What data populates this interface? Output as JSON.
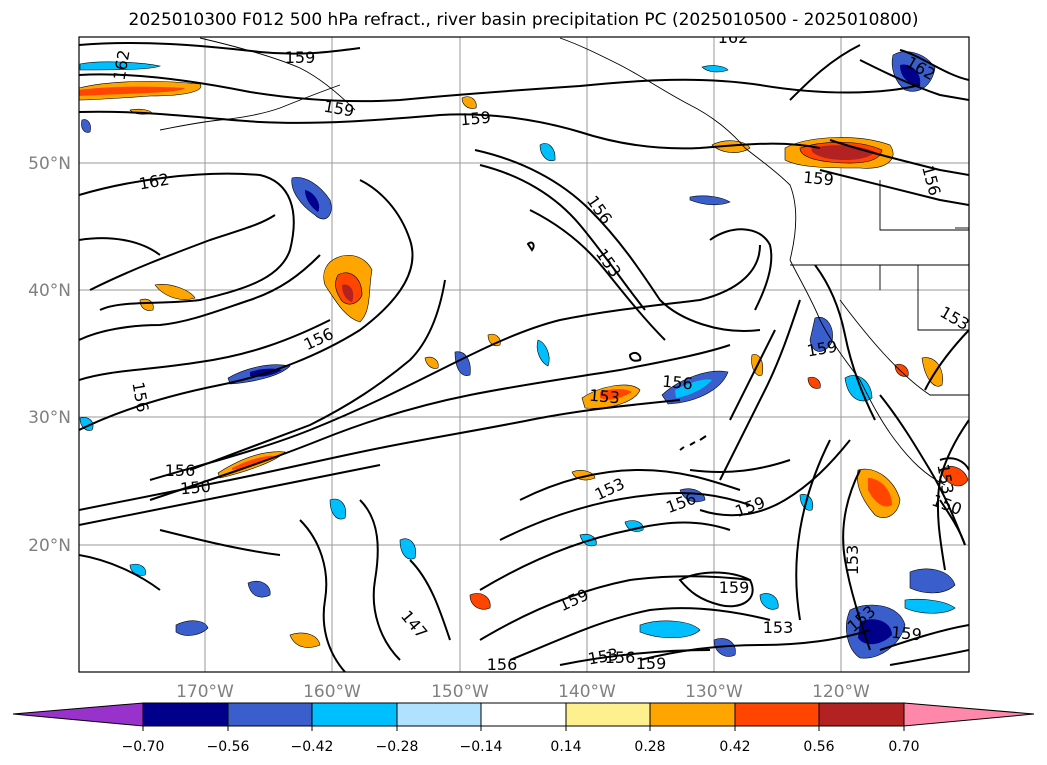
{
  "title": "2025010300 F012 500 hPa refract., river basin precipitation PC (2025010500 - 2025010800)",
  "map": {
    "lat_labels": [
      "50°N",
      "40°N",
      "30°N",
      "20°N"
    ],
    "lon_labels": [
      "170°W",
      "160°W",
      "150°W",
      "140°W",
      "130°W",
      "120°W"
    ],
    "contour_labels": [
      {
        "text": "162",
        "rot": -80
      },
      {
        "text": "159",
        "rot": 0
      },
      {
        "text": "162",
        "rot": 0
      },
      {
        "text": "159",
        "rot": 10
      },
      {
        "text": "159",
        "rot": -5
      },
      {
        "text": "162",
        "rot": -10
      },
      {
        "text": "156",
        "rot": 55
      },
      {
        "text": "153",
        "rot": 55
      },
      {
        "text": "162",
        "rot": 30
      },
      {
        "text": "159",
        "rot": 5
      },
      {
        "text": "156",
        "rot": 75
      },
      {
        "text": "156",
        "rot": -25
      },
      {
        "text": "153",
        "rot": 30
      },
      {
        "text": "159",
        "rot": -10
      },
      {
        "text": "156",
        "rot": 80
      },
      {
        "text": "153",
        "rot": 5
      },
      {
        "text": "156",
        "rot": 5
      },
      {
        "text": "156",
        "rot": 0
      },
      {
        "text": "150",
        "rot": -5
      },
      {
        "text": "153",
        "rot": -25
      },
      {
        "text": "156",
        "rot": -20
      },
      {
        "text": "159",
        "rot": -20
      },
      {
        "text": "153",
        "rot": 80
      },
      {
        "text": "150",
        "rot": 20
      },
      {
        "text": "153",
        "rot": -90
      },
      {
        "text": "159",
        "rot": 0
      },
      {
        "text": "159",
        "rot": -25
      },
      {
        "text": "153",
        "rot": 0
      },
      {
        "text": "153",
        "rot": -40
      },
      {
        "text": "159",
        "rot": 5
      },
      {
        "text": "147",
        "rot": 50
      },
      {
        "text": "156",
        "rot": 0
      },
      {
        "text": "153",
        "rot": -10
      },
      {
        "text": "156",
        "rot": 0
      },
      {
        "text": "159",
        "rot": 0
      }
    ]
  },
  "colorbar": {
    "colors": [
      "#9932cc",
      "#00008b",
      "#3a5fcd",
      "#00bfff",
      "#b0e2ff",
      "#ffffff",
      "#fff08f",
      "#ffa500",
      "#ff4500",
      "#b22222",
      "#ff88aa"
    ],
    "tick_labels": [
      "−0.70",
      "−0.56",
      "−0.42",
      "−0.28",
      "−0.14",
      "0.14",
      "0.28",
      "0.42",
      "0.56",
      "0.70"
    ]
  }
}
